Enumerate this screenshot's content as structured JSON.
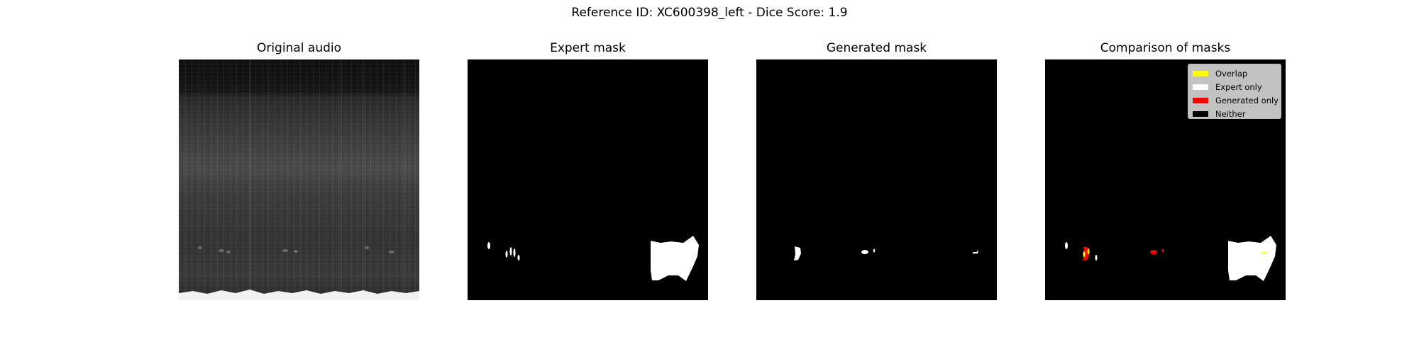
{
  "figure": {
    "suptitle": "Reference ID: XC600398_left - Dice Score: 1.9"
  },
  "panels": [
    {
      "title": "Original audio"
    },
    {
      "title": "Expert mask"
    },
    {
      "title": "Generated mask"
    },
    {
      "title": "Comparison of masks"
    }
  ],
  "legend": {
    "items": [
      {
        "label": "Overlap",
        "color": "#ffff00"
      },
      {
        "label": "Expert only",
        "color": "#ffffff"
      },
      {
        "label": "Generated only",
        "color": "#ff0000"
      },
      {
        "label": "Neither",
        "color": "#000000"
      }
    ]
  }
}
